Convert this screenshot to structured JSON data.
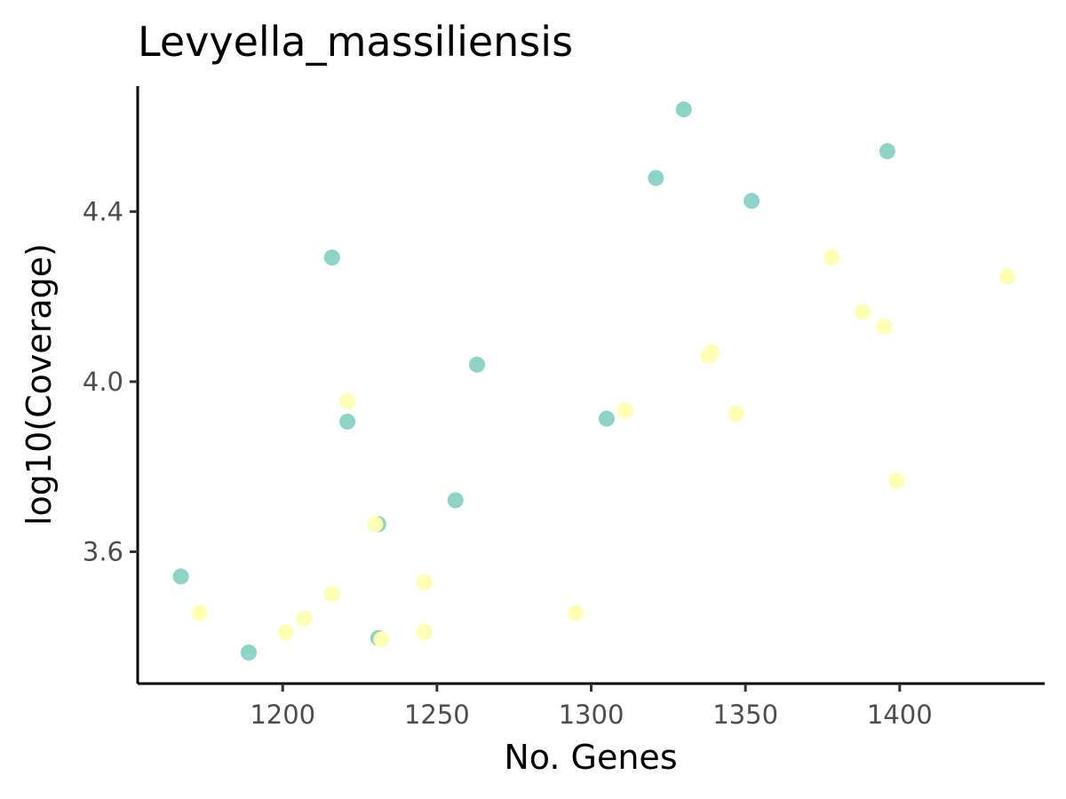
{
  "chart_data": {
    "type": "scatter",
    "title": "Levyella_massiliensis",
    "xlabel": "No. Genes",
    "ylabel": "log10(Coverage)",
    "xlim": [
      1153,
      1447
    ],
    "ylim": [
      3.29,
      4.695
    ],
    "x_ticks": [
      1200,
      1250,
      1300,
      1350,
      1400
    ],
    "y_ticks": [
      3.6,
      4.0,
      4.4
    ],
    "x_tick_labels": [
      "1200",
      "1250",
      "1300",
      "1350",
      "1400"
    ],
    "y_tick_labels": [
      "3.6",
      "4.0",
      "4.4"
    ],
    "grid": false,
    "legend": "none",
    "series": [
      {
        "color": "#8dd3c7",
        "points": [
          {
            "x": 1167,
            "y": 3.542
          },
          {
            "x": 1189,
            "y": 3.363
          },
          {
            "x": 1216,
            "y": 4.292
          },
          {
            "x": 1221,
            "y": 3.906
          },
          {
            "x": 1231,
            "y": 3.665
          },
          {
            "x": 1231,
            "y": 3.397
          },
          {
            "x": 1256,
            "y": 3.721
          },
          {
            "x": 1263,
            "y": 4.04
          },
          {
            "x": 1305,
            "y": 3.913
          },
          {
            "x": 1321,
            "y": 4.479
          },
          {
            "x": 1330,
            "y": 4.64
          },
          {
            "x": 1352,
            "y": 4.425
          },
          {
            "x": 1396,
            "y": 4.542
          }
        ]
      },
      {
        "color": "#ffffb3",
        "points": [
          {
            "x": 1173,
            "y": 3.456
          },
          {
            "x": 1201,
            "y": 3.41
          },
          {
            "x": 1207,
            "y": 3.443
          },
          {
            "x": 1216,
            "y": 3.501
          },
          {
            "x": 1221,
            "y": 3.954
          },
          {
            "x": 1230,
            "y": 3.665
          },
          {
            "x": 1232,
            "y": 3.394
          },
          {
            "x": 1246,
            "y": 3.528
          },
          {
            "x": 1246,
            "y": 3.411
          },
          {
            "x": 1295,
            "y": 3.456
          },
          {
            "x": 1311,
            "y": 3.932
          },
          {
            "x": 1338,
            "y": 4.061
          },
          {
            "x": 1339,
            "y": 4.069
          },
          {
            "x": 1347,
            "y": 3.925
          },
          {
            "x": 1378,
            "y": 4.292
          },
          {
            "x": 1388,
            "y": 4.164
          },
          {
            "x": 1395,
            "y": 4.13
          },
          {
            "x": 1399,
            "y": 3.767
          },
          {
            "x": 1435,
            "y": 4.247
          }
        ]
      }
    ]
  }
}
